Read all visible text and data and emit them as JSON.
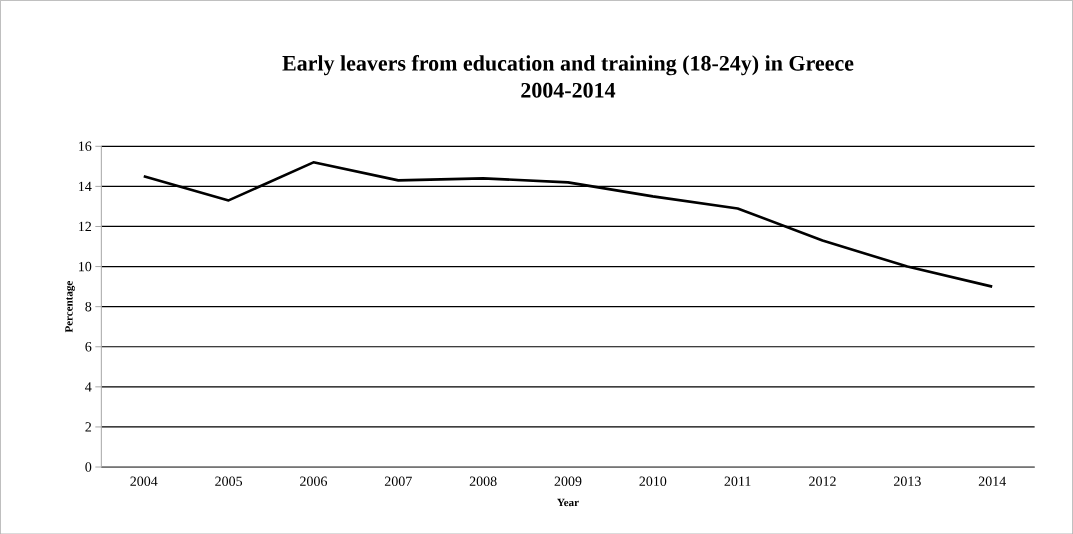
{
  "chart_data": {
    "type": "line",
    "title": "Early leavers from education and training (18-24y) in Greece\n2004-2014",
    "xlabel": "Year",
    "ylabel": "Percentage",
    "categories": [
      "2004",
      "2005",
      "2006",
      "2007",
      "2008",
      "2009",
      "2010",
      "2011",
      "2012",
      "2013",
      "2014"
    ],
    "series": [
      {
        "color": "#000000",
        "values": [
          14.5,
          13.3,
          15.2,
          14.3,
          14.4,
          14.2,
          13.5,
          12.9,
          11.3,
          10.0,
          9.0
        ]
      }
    ],
    "ylim": [
      0,
      16
    ],
    "yticks": [
      0,
      2,
      4,
      6,
      8,
      10,
      12,
      14,
      16
    ],
    "grid": "y",
    "marker": "none",
    "line_style": "solid"
  }
}
